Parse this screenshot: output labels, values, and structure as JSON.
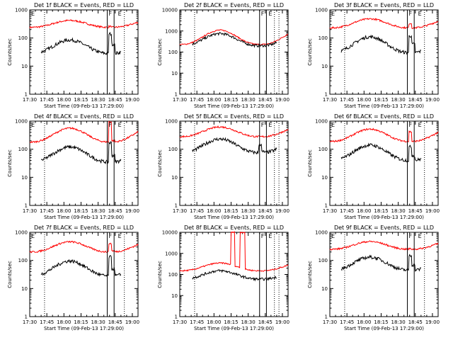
{
  "chart_data": [
    {
      "type": "line",
      "title": "Det 1f BLACK = Events, RED = LLD",
      "xlabel": "Start Time (09-Feb-13 17:29:00)",
      "ylabel": "Counts/sec",
      "xticks": [
        "17:30",
        "17:45",
        "18:00",
        "18:15",
        "18:30",
        "18:45",
        "19:00"
      ],
      "yticks": [
        "1",
        "10",
        "100",
        "1000"
      ],
      "xlim": [
        "17:30",
        "19:05"
      ],
      "ylim": [
        1,
        1000
      ],
      "yscale": "log",
      "grid": false,
      "legend": "none",
      "markers": {
        "dotted": [
          "17:43",
          "18:53"
        ],
        "solid": [
          "18:38",
          "18:44"
        ],
        "labels": [
          "E",
          "F",
          "E"
        ]
      },
      "series": [
        {
          "color": "#ff0000",
          "curve": "swell",
          "base": 240,
          "peak": 420,
          "from": "17:30",
          "to": "19:05",
          "bump": [
            260,
            180
          ]
        },
        {
          "color": "#000000",
          "curve": "swell",
          "base": 28,
          "peak": 85,
          "from": "17:40",
          "to": "18:50",
          "bump": [
            140,
            60
          ]
        }
      ]
    },
    {
      "type": "line",
      "title": "Det 2f BLACK = Events, RED = LLD",
      "xlabel": "Start Time (09-Feb-13 17:29:00)",
      "ylabel": "Counts/sec",
      "xticks": [
        "17:30",
        "17:45",
        "18:00",
        "18:15",
        "18:30",
        "18:45",
        "19:00"
      ],
      "yticks": [
        "1",
        "10",
        "100",
        "1000",
        "10000"
      ],
      "xlim": [
        "17:30",
        "19:05"
      ],
      "ylim": [
        1,
        10000
      ],
      "yscale": "log",
      "grid": false,
      "legend": "none",
      "markers": {
        "dotted": [
          "17:43",
          "18:53",
          "18:57"
        ],
        "solid": [
          "18:40",
          "18:46"
        ],
        "labels": [
          "F",
          "E"
        ]
      },
      "series": [
        {
          "color": "#ff0000",
          "curve": "swell",
          "base": 230,
          "peak": 1100,
          "from": "17:30",
          "to": "19:05",
          "bump": [
            0,
            0
          ]
        },
        {
          "color": "#000000",
          "curve": "swell",
          "base": 200,
          "peak": 750,
          "from": "17:41",
          "to": "18:55",
          "bump": [
            0,
            0
          ]
        }
      ]
    },
    {
      "type": "line",
      "title": "Det 3f BLACK = Events, RED = LLD",
      "xlabel": "Start Time (09-Feb-13 17:29:00)",
      "ylabel": "Counts/sec",
      "xticks": [
        "17:30",
        "17:45",
        "18:00",
        "18:15",
        "18:30",
        "18:45",
        "19:00"
      ],
      "yticks": [
        "1",
        "10",
        "100",
        "1000"
      ],
      "xlim": [
        "17:30",
        "19:05"
      ],
      "ylim": [
        1,
        1000
      ],
      "yscale": "log",
      "grid": false,
      "legend": "none",
      "markers": {
        "dotted": [
          "17:43",
          "18:53"
        ],
        "solid": [
          "18:38",
          "18:44"
        ],
        "labels": [
          "E",
          "F",
          "E"
        ]
      },
      "series": [
        {
          "color": "#ff0000",
          "curve": "swell",
          "base": 230,
          "peak": 480,
          "from": "17:30",
          "to": "19:05",
          "bump": [
            330,
            170
          ]
        },
        {
          "color": "#000000",
          "curve": "swell",
          "base": 30,
          "peak": 110,
          "from": "17:40",
          "to": "18:50",
          "bump": [
            120,
            60
          ]
        }
      ]
    },
    {
      "type": "line",
      "title": "Det 4f BLACK = Events, RED = LLD",
      "xlabel": "Start Time (09-Feb-13 17:29:00)",
      "ylabel": "Counts/sec",
      "xticks": [
        "17:30",
        "17:45",
        "18:00",
        "18:15",
        "18:30",
        "18:45",
        "19:00"
      ],
      "yticks": [
        "1",
        "10",
        "100",
        "1000"
      ],
      "xlim": [
        "17:30",
        "19:05"
      ],
      "ylim": [
        1,
        1000
      ],
      "yscale": "log",
      "grid": false,
      "legend": "none",
      "markers": {
        "dotted": [
          "17:43",
          "18:53"
        ],
        "solid": [
          "18:38",
          "18:44"
        ],
        "labels": [
          "E",
          "F",
          "E"
        ]
      },
      "series": [
        {
          "color": "#ff0000",
          "curve": "swell",
          "base": 180,
          "peak": 560,
          "from": "17:30",
          "to": "19:05",
          "bump": [
            950,
            200
          ]
        },
        {
          "color": "#000000",
          "curve": "swell",
          "base": 35,
          "peak": 120,
          "from": "17:40",
          "to": "18:50",
          "bump": [
            170,
            60
          ]
        }
      ]
    },
    {
      "type": "line",
      "title": "Det 5f BLACK = Events, RED = LLD",
      "xlabel": "Start Time (09-Feb-13 17:29:00)",
      "ylabel": "Counts/sec",
      "xticks": [
        "17:30",
        "17:45",
        "18:00",
        "18:15",
        "18:30",
        "18:45",
        "19:00"
      ],
      "yticks": [
        "1",
        "10",
        "100",
        "1000"
      ],
      "xlim": [
        "17:30",
        "19:05"
      ],
      "ylim": [
        1,
        1000
      ],
      "yscale": "log",
      "grid": false,
      "legend": "none",
      "markers": {
        "dotted": [
          "17:43",
          "18:53",
          "18:57"
        ],
        "solid": [
          "18:40",
          "18:46"
        ],
        "labels": [
          "F",
          "E"
        ]
      },
      "series": [
        {
          "color": "#ff0000",
          "curve": "swell",
          "base": 280,
          "peak": 620,
          "from": "17:30",
          "to": "19:05",
          "bump": [
            0,
            0
          ]
        },
        {
          "color": "#000000",
          "curve": "swell",
          "base": 75,
          "peak": 230,
          "from": "17:41",
          "to": "18:55",
          "bump": [
            150,
            80
          ]
        }
      ]
    },
    {
      "type": "line",
      "title": "Det 6f BLACK = Events, RED = LLD",
      "xlabel": "Start Time (09-Feb-13 17:29:00)",
      "ylabel": "Counts/sec",
      "xticks": [
        "17:30",
        "17:45",
        "18:00",
        "18:15",
        "18:30",
        "18:45",
        "19:00"
      ],
      "yticks": [
        "1",
        "10",
        "100",
        "1000"
      ],
      "xlim": [
        "17:30",
        "19:05"
      ],
      "ylim": [
        1,
        1000
      ],
      "yscale": "log",
      "grid": false,
      "legend": "none",
      "markers": {
        "dotted": [
          "17:43",
          "18:53"
        ],
        "solid": [
          "18:38",
          "18:44"
        ],
        "labels": [
          "E",
          "F",
          "E"
        ]
      },
      "series": [
        {
          "color": "#ff0000",
          "curve": "swell",
          "base": 190,
          "peak": 520,
          "from": "17:30",
          "to": "19:05",
          "bump": [
            420,
            180
          ]
        },
        {
          "color": "#000000",
          "curve": "swell",
          "base": 40,
          "peak": 140,
          "from": "17:40",
          "to": "18:50",
          "bump": [
            120,
            60
          ]
        }
      ]
    },
    {
      "type": "line",
      "title": "Det 7f BLACK = Events, RED = LLD",
      "xlabel": "Start Time (09-Feb-13 17:29:00)",
      "ylabel": "Counts/sec",
      "xticks": [
        "17:30",
        "17:45",
        "18:00",
        "18:15",
        "18:30",
        "18:45",
        "19:00"
      ],
      "yticks": [
        "1",
        "10",
        "100",
        "1000"
      ],
      "xlim": [
        "17:30",
        "19:05"
      ],
      "ylim": [
        1,
        1000
      ],
      "yscale": "log",
      "grid": false,
      "legend": "none",
      "markers": {
        "dotted": [
          "17:43",
          "18:53"
        ],
        "solid": [
          "18:38",
          "18:44"
        ],
        "labels": [
          "E",
          "F",
          "E"
        ]
      },
      "series": [
        {
          "color": "#ff0000",
          "curve": "swell",
          "base": 200,
          "peak": 460,
          "from": "17:30",
          "to": "19:05",
          "bump": [
            400,
            220
          ]
        },
        {
          "color": "#000000",
          "curve": "swell",
          "base": 28,
          "peak": 95,
          "from": "17:40",
          "to": "18:50",
          "bump": [
            130,
            50
          ]
        }
      ]
    },
    {
      "type": "line",
      "title": "Det 8f BLACK = Events, RED = LLD",
      "xlabel": "Start Time (09-Feb-13 17:29:00)",
      "ylabel": "Counts/sec",
      "xticks": [
        "17:30",
        "17:45",
        "18:00",
        "18:15",
        "18:30",
        "18:45",
        "19:00"
      ],
      "yticks": [
        "1",
        "10",
        "100",
        "1000",
        "10000"
      ],
      "xlim": [
        "17:30",
        "19:05"
      ],
      "ylim": [
        1,
        10000
      ],
      "yscale": "log",
      "grid": false,
      "legend": "none",
      "markers": {
        "dotted": [
          "17:43",
          "18:53",
          "18:57"
        ],
        "solid": [
          "18:40",
          "18:46"
        ],
        "labels": [
          "F",
          "E"
        ]
      },
      "series": [
        {
          "color": "#ff0000",
          "curve": "swell",
          "base": 150,
          "peak": 350,
          "from": "17:30",
          "to": "19:05",
          "bump": [
            0,
            0
          ],
          "spikes": [
            [
              "18:15",
              "18:18",
              10000
            ],
            [
              "18:23",
              "18:27",
              10000
            ]
          ]
        },
        {
          "color": "#000000",
          "curve": "swell",
          "base": 60,
          "peak": 150,
          "from": "17:41",
          "to": "18:55",
          "bump": [
            0,
            0
          ]
        }
      ]
    },
    {
      "type": "line",
      "title": "Det 9f BLACK = Events, RED = LLD",
      "xlabel": "Start Time (09-Feb-13 17:29:00)",
      "ylabel": "Counts/sec",
      "xticks": [
        "17:30",
        "17:45",
        "18:00",
        "18:15",
        "18:30",
        "18:45",
        "19:00"
      ],
      "yticks": [
        "1",
        "10",
        "100",
        "1000"
      ],
      "xlim": [
        "17:30",
        "19:05"
      ],
      "ylim": [
        1,
        1000
      ],
      "yscale": "log",
      "grid": false,
      "legend": "none",
      "markers": {
        "dotted": [
          "17:43",
          "18:53"
        ],
        "solid": [
          "18:38",
          "18:44"
        ],
        "labels": [
          "E",
          "F",
          "E"
        ]
      },
      "series": [
        {
          "color": "#ff0000",
          "curve": "swell",
          "base": 250,
          "peak": 470,
          "from": "17:30",
          "to": "19:05",
          "bump": [
            260,
            160
          ]
        },
        {
          "color": "#000000",
          "curve": "swell",
          "base": 45,
          "peak": 130,
          "from": "17:40",
          "to": "18:50",
          "bump": [
            150,
            70
          ]
        }
      ]
    }
  ]
}
